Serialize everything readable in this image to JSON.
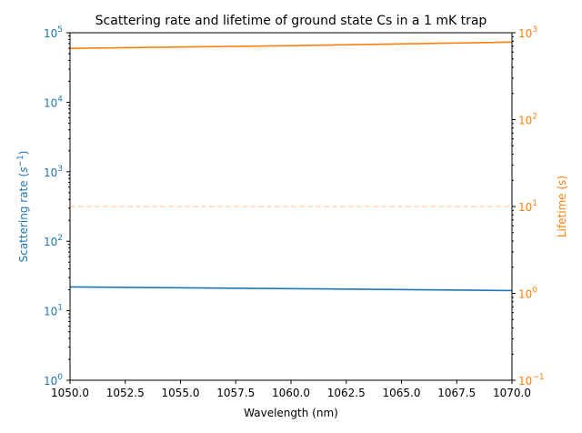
{
  "chart_data": {
    "type": "line",
    "title": "Scattering rate and lifetime of ground state Cs in a 1 mK trap",
    "xlabel": "Wavelength (nm)",
    "xlim": [
      1050,
      1070
    ],
    "x_ticks": [
      "1050.0",
      "1052.5",
      "1055.0",
      "1057.5",
      "1060.0",
      "1062.5",
      "1065.0",
      "1067.5",
      "1070.0"
    ],
    "left_axis": {
      "label_base": "Scattering rate (",
      "label_sym": "s",
      "label_exp": "−1",
      "label_end": ")",
      "scale": "log",
      "ylim": [
        1,
        100000
      ],
      "color": "#1f77b4",
      "tick_exponents": [
        "0",
        "1",
        "2",
        "3",
        "4",
        "5"
      ]
    },
    "right_axis": {
      "label": "Lifetime (s)",
      "scale": "log",
      "ylim": [
        0.1,
        1000
      ],
      "color": "#ff7f0e",
      "tick_exponents": [
        "−1",
        "0",
        "1",
        "2",
        "3"
      ]
    },
    "series": [
      {
        "axis": "left",
        "color": "#1f77b4",
        "x": [
          1050,
          1060,
          1070
        ],
        "y": [
          22,
          20.8,
          19.5
        ]
      },
      {
        "axis": "right",
        "color": "#ff7f0e",
        "x": [
          1050,
          1060,
          1070
        ],
        "y": [
          660,
          710,
          780
        ]
      },
      {
        "axis": "right",
        "color": "#ff7f0e",
        "style": "dashed",
        "x": [
          1050,
          1070
        ],
        "y": [
          10,
          10
        ]
      }
    ],
    "grid": false,
    "legend": "none"
  }
}
